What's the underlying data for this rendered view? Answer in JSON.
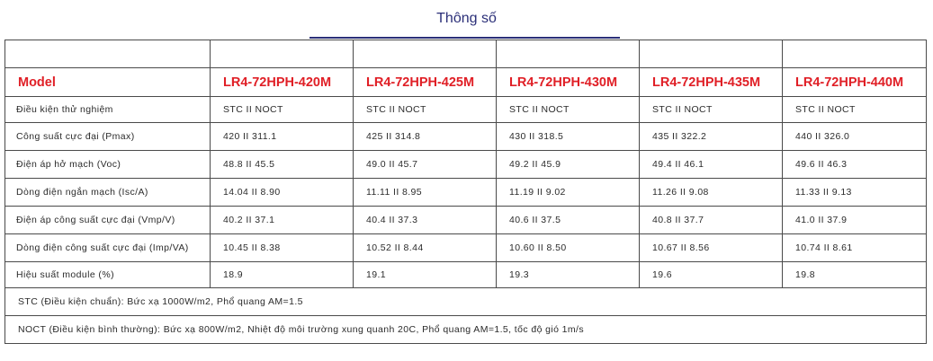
{
  "header": {
    "title": "Thông số"
  },
  "table": {
    "model_label": "Model",
    "models": [
      "LR4-72HPH-420M",
      "LR4-72HPH-425M",
      "LR4-72HPH-430M",
      "LR4-72HPH-435M",
      "LR4-72HPH-440M"
    ],
    "rows": [
      {
        "label": "Điều kiện thử nghiệm",
        "values": [
          "STC II NOCT",
          "STC II NOCT",
          "STC II NOCT",
          "STC II NOCT",
          "STC II NOCT"
        ]
      },
      {
        "label": "Công suất cực đại (Pmax)",
        "values": [
          "420 II 311.1",
          "425 II 314.8",
          "430 II 318.5",
          "435 II 322.2",
          "440 II 326.0"
        ]
      },
      {
        "label": "Điện áp hở mạch (Voc)",
        "values": [
          "48.8 II 45.5",
          "49.0 II 45.7",
          "49.2 II 45.9",
          "49.4 II 46.1",
          "49.6 II 46.3"
        ]
      },
      {
        "label": "Dòng điện ngắn mạch (Isc/A)",
        "values": [
          "14.04 II 8.90",
          "11.11 II 8.95",
          "11.19 II 9.02",
          "11.26 II 9.08",
          "11.33 II 9.13"
        ]
      },
      {
        "label": "Điện áp công suất cực đại (Vmp/V)",
        "values": [
          "40.2 II 37.1",
          "40.4 II 37.3",
          "40.6 II 37.5",
          "40.8 II 37.7",
          "41.0 II 37.9"
        ]
      },
      {
        "label": "Dòng điện công suất cực đại (Imp/VA)",
        "values": [
          "10.45 II 8.38",
          "10.52 II 8.44",
          "10.60 II 8.50",
          "10.67 II 8.56",
          "10.74 II 8.61"
        ]
      },
      {
        "label": "Hiệu suất module (%)",
        "values": [
          "18.9",
          "19.1",
          "19.3",
          "19.6",
          "19.8"
        ]
      }
    ],
    "notes": [
      "STC (Điều kiện chuẩn): Bức xạ 1000W/m2, Phổ quang AM=1.5",
      "NOCT (Điều kiện bình thường): Bức xạ 800W/m2, Nhiệt độ môi trường xung quanh 20C, Phổ quang AM=1.5, tốc độ gió 1m/s"
    ]
  }
}
